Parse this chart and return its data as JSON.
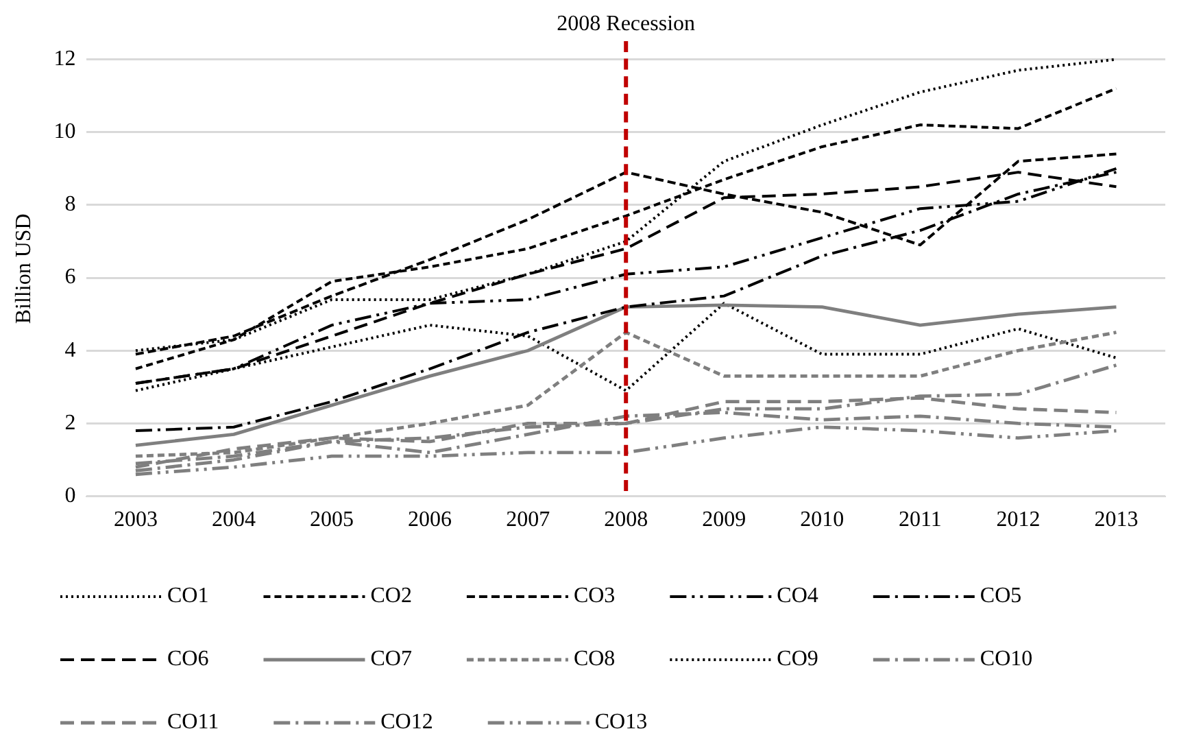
{
  "chart_data": {
    "type": "line",
    "ylabel": "Billion USD",
    "categories": [
      "2003",
      "2004",
      "2005",
      "2006",
      "2007",
      "2008",
      "2009",
      "2010",
      "2011",
      "2012",
      "2013"
    ],
    "ylim": [
      0,
      12.5
    ],
    "yticks": [
      0,
      2,
      4,
      6,
      8,
      10,
      12
    ],
    "grid": "y",
    "legend": "bottom",
    "marker": "none",
    "ref_lines": [
      {
        "axis": "x",
        "value": "2008",
        "label": "2008 Recession",
        "color": "#c00000",
        "line_style": "dashed"
      }
    ],
    "series": [
      {
        "name": "CO1",
        "color": "#000000",
        "line_style": "dotted",
        "values": [
          4.0,
          4.3,
          5.4,
          5.4,
          6.1,
          7.0,
          9.2,
          10.2,
          11.1,
          11.7,
          12.0
        ]
      },
      {
        "name": "CO2",
        "color": "#000000",
        "line_style": "dashed",
        "values": [
          3.5,
          4.3,
          5.9,
          6.3,
          6.8,
          7.7,
          8.7,
          9.6,
          10.2,
          10.1,
          11.2
        ]
      },
      {
        "name": "CO3",
        "color": "#000000",
        "line_style": "mediumdash",
        "values": [
          3.9,
          4.4,
          5.5,
          6.5,
          7.6,
          8.9,
          8.3,
          7.8,
          6.9,
          9.2,
          9.4
        ]
      },
      {
        "name": "CO4",
        "color": "#000000",
        "line_style": "dashdotdot",
        "values": [
          3.1,
          3.5,
          4.7,
          5.3,
          5.4,
          6.1,
          6.3,
          7.1,
          7.9,
          8.1,
          9.0
        ]
      },
      {
        "name": "CO5",
        "color": "#000000",
        "line_style": "dashdot",
        "values": [
          1.8,
          1.9,
          2.6,
          3.5,
          4.5,
          5.2,
          5.5,
          6.6,
          7.3,
          8.3,
          8.9
        ]
      },
      {
        "name": "CO6",
        "color": "#000000",
        "line_style": "longdash",
        "values": [
          3.1,
          3.5,
          4.4,
          5.3,
          6.1,
          6.8,
          8.2,
          8.3,
          8.5,
          8.9,
          8.5
        ]
      },
      {
        "name": "CO7",
        "color": "#7f7f7f",
        "line_style": "solid",
        "values": [
          1.4,
          1.7,
          2.5,
          3.3,
          4.0,
          5.2,
          5.25,
          5.2,
          4.7,
          5.0,
          5.2
        ]
      },
      {
        "name": "CO8",
        "color": "#7f7f7f",
        "line_style": "dashed",
        "values": [
          1.1,
          1.2,
          1.6,
          2.0,
          2.5,
          4.5,
          3.3,
          3.3,
          3.3,
          4.0,
          4.5
        ]
      },
      {
        "name": "CO9",
        "color": "#000000",
        "line_style": "dotted",
        "values": [
          2.9,
          3.5,
          4.1,
          4.7,
          4.4,
          2.9,
          5.3,
          3.9,
          3.9,
          4.6,
          3.8
        ]
      },
      {
        "name": "CO10",
        "color": "#7f7f7f",
        "line_style": "dashdot",
        "values": [
          0.7,
          1.0,
          1.5,
          1.6,
          1.9,
          2.0,
          2.4,
          2.4,
          2.75,
          2.8,
          3.6
        ]
      },
      {
        "name": "CO11",
        "color": "#7f7f7f",
        "line_style": "longdash",
        "values": [
          0.8,
          1.3,
          1.6,
          1.5,
          2.0,
          2.0,
          2.6,
          2.6,
          2.7,
          2.4,
          2.3
        ]
      },
      {
        "name": "CO12",
        "color": "#7f7f7f",
        "line_style": "dashdot",
        "values": [
          0.9,
          1.1,
          1.5,
          1.2,
          1.7,
          2.2,
          2.3,
          2.1,
          2.2,
          2.0,
          1.9
        ]
      },
      {
        "name": "CO13",
        "color": "#7f7f7f",
        "line_style": "dashdotdot",
        "values": [
          0.6,
          0.8,
          1.1,
          1.1,
          1.2,
          1.2,
          1.6,
          1.9,
          1.8,
          1.6,
          1.8
        ]
      }
    ]
  }
}
